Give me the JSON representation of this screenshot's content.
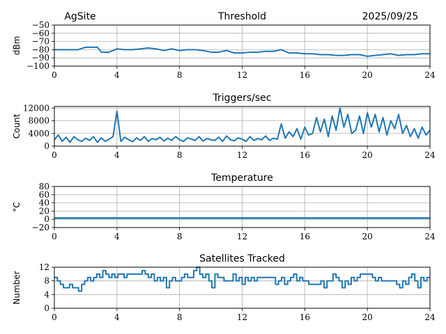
{
  "header": {
    "site": "AgSite",
    "date": "2025/09/25"
  },
  "colors": {
    "line": "#1f77b4",
    "grid": "#b0b0b0"
  },
  "chart_data": [
    {
      "type": "line",
      "title": "Threshold",
      "ylabel": "dBm",
      "xlabel": "",
      "xlim": [
        0,
        24
      ],
      "ylim": [
        -100,
        -50
      ],
      "xticks": [
        "0",
        "4",
        "8",
        "12",
        "16",
        "20",
        "24"
      ],
      "yticks": [
        "−50",
        "−60",
        "−70",
        "−80",
        "−90",
        "−100"
      ],
      "ytick_values": [
        -50,
        -60,
        -70,
        -80,
        -90,
        -100
      ],
      "grid": true,
      "x": [
        0,
        0.5,
        1,
        1.5,
        2,
        2.5,
        2.75,
        3,
        3.5,
        4,
        4.5,
        5,
        5.5,
        6,
        6.5,
        7,
        7.5,
        8,
        8.5,
        9,
        9.5,
        10,
        10.5,
        11,
        11.5,
        12,
        12.5,
        13,
        13.5,
        14,
        14.5,
        15,
        15.5,
        16,
        16.5,
        17,
        17.5,
        18,
        18.5,
        19,
        19.5,
        20,
        20.5,
        21,
        21.5,
        22,
        22.5,
        23,
        23.5,
        24
      ],
      "values": [
        -80,
        -80,
        -80,
        -80,
        -77,
        -77,
        -77,
        -83,
        -83,
        -79,
        -80,
        -80,
        -79,
        -78,
        -79,
        -81,
        -79,
        -81,
        -80,
        -80,
        -81,
        -83,
        -83,
        -81,
        -84,
        -84,
        -83,
        -83,
        -82,
        -82,
        -80,
        -84,
        -84,
        -85,
        -85,
        -86,
        -86,
        -87,
        -87,
        -86,
        -86,
        -88,
        -87,
        -86,
        -85,
        -87,
        -86,
        -86,
        -85,
        -85
      ]
    },
    {
      "type": "line",
      "title": "Triggers/sec",
      "ylabel": "Count",
      "xlabel": "",
      "xlim": [
        0,
        24
      ],
      "ylim": [
        0,
        12500
      ],
      "xticks": [
        "0",
        "4",
        "8",
        "12",
        "16",
        "20",
        "24"
      ],
      "yticks": [
        "12000",
        "8000",
        "4000",
        "0"
      ],
      "ytick_values": [
        12000,
        8000,
        4000,
        0
      ],
      "grid": true,
      "values": [
        2000,
        3500,
        1500,
        2800,
        1200,
        3000,
        2000,
        1500,
        2500,
        1800,
        3000,
        1200,
        2600,
        1500,
        2200,
        3000,
        11000,
        1500,
        2800,
        2000,
        1400,
        2600,
        1800,
        3000,
        1500,
        2400,
        2000,
        2800,
        1600,
        2500,
        1800,
        3000,
        2000,
        1500,
        2600,
        2200,
        1800,
        3000,
        1600,
        2400,
        2000,
        1800,
        2800,
        1500,
        3200,
        2000,
        1700,
        2600,
        2200,
        1500,
        3000,
        1800,
        2400,
        2000,
        3200,
        1800,
        2500,
        2200,
        7000,
        2500,
        4500,
        3000,
        5500,
        2200,
        6000,
        3500,
        4000,
        9000,
        4500,
        8500,
        3000,
        9500,
        5000,
        12000,
        6000,
        10000,
        4000,
        5000,
        9500,
        4000,
        10500,
        6000,
        10000,
        4500,
        9000,
        3500,
        8000,
        5500,
        10000,
        4000,
        6500,
        3000,
        5500,
        2500,
        6000,
        3500,
        5000
      ]
    },
    {
      "type": "line",
      "title": "Temperature",
      "ylabel": "°C",
      "xlabel": "",
      "xlim": [
        0,
        24
      ],
      "ylim": [
        -20,
        80
      ],
      "xticks": [
        "0",
        "4",
        "8",
        "12",
        "16",
        "20",
        "24"
      ],
      "yticks": [
        "80",
        "60",
        "40",
        "20",
        "0",
        "−20"
      ],
      "ytick_values": [
        80,
        60,
        40,
        20,
        0,
        -20
      ],
      "grid": true,
      "values": [
        3,
        3
      ]
    },
    {
      "type": "line",
      "title": "Satellites Tracked",
      "ylabel": "Number",
      "xlabel": "",
      "xlim": [
        0,
        24
      ],
      "ylim": [
        0,
        12
      ],
      "xticks": [
        "0",
        "4",
        "8",
        "12",
        "16",
        "20",
        "24"
      ],
      "yticks": [
        "12",
        "8",
        "4",
        "0"
      ],
      "ytick_values": [
        12,
        8,
        4,
        0
      ],
      "grid": true,
      "step": true,
      "values": [
        9,
        8,
        7,
        6,
        6,
        7,
        6,
        6,
        5,
        7,
        8,
        9,
        8,
        9,
        10,
        9,
        11,
        10,
        9,
        10,
        9,
        10,
        10,
        9,
        10,
        10,
        10,
        10,
        10,
        11,
        10,
        9,
        10,
        8,
        9,
        8,
        9,
        6,
        8,
        9,
        8,
        8,
        9,
        10,
        9,
        9,
        11,
        12,
        10,
        9,
        10,
        8,
        6,
        10,
        9,
        9,
        8,
        8,
        8,
        10,
        8,
        9,
        7,
        9,
        8,
        9,
        8,
        9,
        9,
        9,
        9,
        9,
        9,
        7,
        8,
        9,
        7,
        8,
        9,
        10,
        8,
        9,
        8,
        8,
        7,
        7,
        7,
        7,
        8,
        6,
        8,
        8,
        10,
        9,
        8,
        6,
        8,
        7,
        9,
        8,
        9,
        10,
        10,
        10,
        10,
        9,
        8,
        9,
        8,
        8,
        8,
        8,
        8,
        7,
        6,
        8,
        7,
        9,
        10,
        8,
        6,
        9,
        8,
        9,
        9
      ]
    }
  ]
}
